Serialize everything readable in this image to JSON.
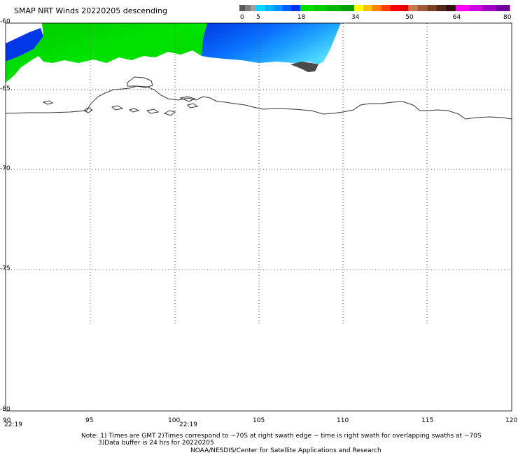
{
  "title": "SMAP NRT Winds  20220205 descending",
  "colorbar": {
    "tick_labels": [
      "0",
      "5",
      "18",
      "34",
      "50",
      "64",
      "80"
    ],
    "segments": [
      {
        "from": 0,
        "to": 5,
        "colors": [
          "#5a5a5a",
          "#7d7d7d",
          "#a0a0a0"
        ]
      },
      {
        "from": 5,
        "to": 18,
        "colors": [
          "#00d8ff",
          "#00b4ff",
          "#0090ff",
          "#0060ff",
          "#0030f0"
        ]
      },
      {
        "from": 18,
        "to": 34,
        "colors": [
          "#00e000",
          "#00cc00",
          "#00b800",
          "#00a000"
        ]
      },
      {
        "from": 34,
        "to": 50,
        "colors": [
          "#ffff00",
          "#ffc000",
          "#ff8000",
          "#ff4000",
          "#ff0000",
          "#e80000"
        ]
      },
      {
        "from": 50,
        "to": 64,
        "colors": [
          "#c87850",
          "#a05a38",
          "#7a4028",
          "#502818",
          "#301008"
        ]
      },
      {
        "from": 64,
        "to": 80,
        "colors": [
          "#ff00ff",
          "#d000e0",
          "#a000c0",
          "#7000a0"
        ]
      }
    ]
  },
  "map": {
    "lat_labels": [
      "-60",
      "-65",
      "-70",
      "-75",
      "-80"
    ],
    "lon_labels": [
      "90",
      "95",
      "100",
      "105",
      "110",
      "115",
      "120"
    ],
    "time_labels": [
      "22:19",
      "22:19"
    ],
    "lat_range": [
      -80,
      -60
    ],
    "lon_range": [
      90,
      120
    ]
  },
  "footer": {
    "line1": "Note: 1) Times are GMT 2)Times correspond to ~70S at right swath edge ~ time is right swath for overlapping swaths at ~70S",
    "line2": "3)Data buffer is 24 hrs for 20220205",
    "line3": "NOAA/NESDIS/Center for Satellite Applications and Research"
  }
}
